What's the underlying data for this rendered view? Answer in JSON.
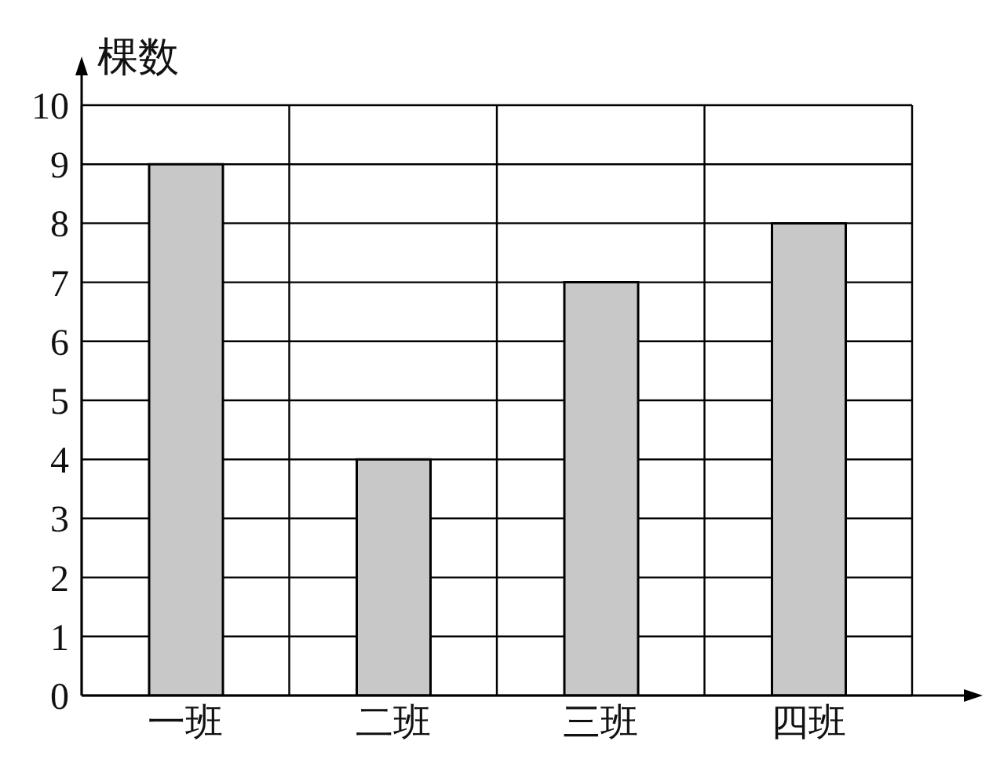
{
  "chart_data": {
    "type": "bar",
    "ylabel": "棵数",
    "categories": [
      "一班",
      "二班",
      "三班",
      "四班"
    ],
    "values": [
      9,
      4,
      7,
      8
    ],
    "color": "#c8c8c8",
    "ylim": [
      0,
      10
    ],
    "yticks": [
      0,
      1,
      2,
      3,
      4,
      5,
      6,
      7,
      8,
      9,
      10
    ],
    "grid": true
  }
}
